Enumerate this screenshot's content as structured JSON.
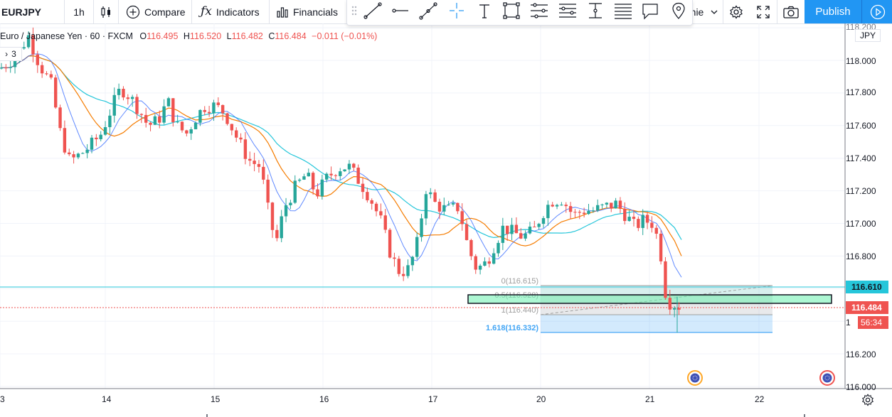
{
  "toolbar": {
    "symbol": "EURJPY",
    "interval": "1h",
    "compare_label": "Compare",
    "indicators_label": "Indicators",
    "financials_label": "Financials",
    "hidden_label": "nie",
    "publish_label": "Publish"
  },
  "legend": {
    "name": "Euro / Japanese Yen · 60 · FXCM",
    "open_key": "O",
    "open": "116.495",
    "high_key": "H",
    "high": "116.520",
    "low_key": "L",
    "low": "116.482",
    "close_key": "C",
    "close": "116.484",
    "change": "−0.011 (−0.01%)",
    "collapse_count": "3"
  },
  "price_axis": {
    "currency": "JPY",
    "ticks": [
      "118.000",
      "117.800",
      "117.600",
      "117.400",
      "117.200",
      "117.000",
      "116.800",
      "116.200",
      "116.000"
    ],
    "cut_top_tick": "118.200",
    "level_line_label": "116.610",
    "last_price_label": "116.484",
    "countdown": "56:34",
    "partial_tick": "1"
  },
  "time_axis": {
    "ticks": [
      "3",
      "14",
      "15",
      "16",
      "17",
      "20",
      "21",
      "22"
    ]
  },
  "fibonacci": {
    "levels": [
      {
        "label": "0(116.615)",
        "value": 116.615
      },
      {
        "label": "0.5(116.528)",
        "value": 116.528
      },
      {
        "label": "1(116.440)",
        "value": 116.44
      },
      {
        "label": "1.618(116.332)",
        "value": 116.332
      }
    ]
  },
  "chart_data": {
    "type": "candlestick",
    "title": "",
    "ylim": [
      115.99,
      118.23
    ],
    "grid": true,
    "colors": {
      "up": "#26a69a",
      "down": "#ef5350",
      "ma_fast": "#2962ff",
      "ma_mid": "#f57c00",
      "ma_slow": "#26c6da",
      "level": "#26c6da"
    },
    "moving_averages_visible": 3,
    "horizontal_level": 116.61,
    "last_close": 116.484
  },
  "colors": {
    "publish": "#2196f3",
    "up": "#26a69a",
    "down": "#ef5350"
  }
}
